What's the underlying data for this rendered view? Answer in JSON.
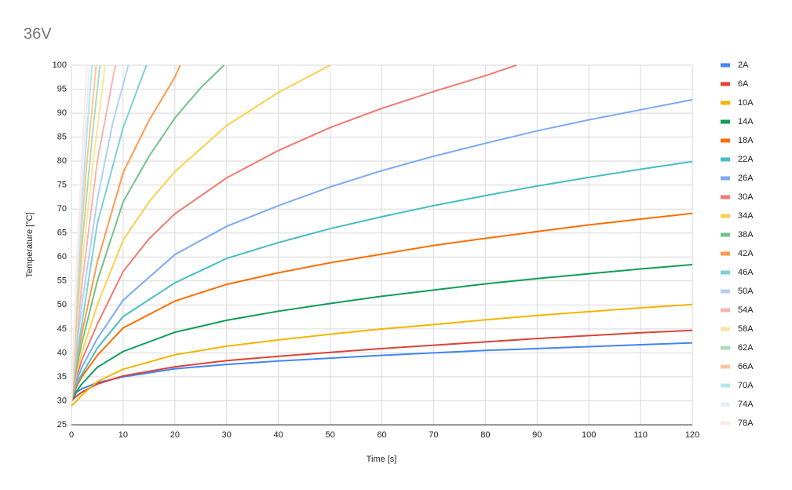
{
  "chart_data": {
    "type": "line",
    "title": "36V",
    "x_label": "Time [s]",
    "y_label": "Temperature [°C]",
    "xlim": [
      0,
      120
    ],
    "xticks": [
      0,
      10,
      20,
      30,
      40,
      50,
      60,
      70,
      80,
      90,
      100,
      110,
      120
    ],
    "ylim": [
      25,
      100
    ],
    "yticks": [
      25,
      30,
      35,
      40,
      45,
      50,
      55,
      60,
      65,
      70,
      75,
      80,
      85,
      90,
      95,
      100
    ],
    "grid": true,
    "legend": "right",
    "series": [
      {
        "name": "2A",
        "color": "#4285f4",
        "x": [
          0,
          1,
          2,
          5,
          10,
          20,
          30,
          40,
          50,
          60,
          70,
          80,
          90,
          100,
          110,
          120
        ],
        "values": [
          30,
          31.8,
          32.5,
          33.8,
          35,
          36.7,
          37.6,
          38.3,
          38.9,
          39.5,
          40,
          40.5,
          40.9,
          41.3,
          41.7,
          42.1
        ]
      },
      {
        "name": "6A",
        "color": "#db4437",
        "x": [
          0,
          1,
          2,
          5,
          10,
          20,
          30,
          40,
          50,
          60,
          70,
          80,
          90,
          100,
          110,
          120
        ],
        "values": [
          30,
          31,
          31.8,
          33.5,
          35.2,
          37.1,
          38.4,
          39.3,
          40.1,
          40.9,
          41.6,
          42.3,
          43,
          43.6,
          44.2,
          44.7
        ]
      },
      {
        "name": "10A",
        "color": "#f4b400",
        "x": [
          0,
          1,
          2,
          5,
          10,
          20,
          30,
          40,
          50,
          60,
          70,
          80,
          90,
          100,
          110,
          120
        ],
        "values": [
          29,
          30,
          31.2,
          34,
          36.6,
          39.6,
          41.4,
          42.7,
          43.9,
          45,
          45.9,
          46.9,
          47.8,
          48.6,
          49.4,
          50.1
        ]
      },
      {
        "name": "14A",
        "color": "#0f9d58",
        "x": [
          0,
          1,
          2,
          5,
          10,
          20,
          30,
          40,
          50,
          60,
          70,
          80,
          90,
          100,
          110,
          120
        ],
        "values": [
          30,
          32,
          33.5,
          37,
          40.3,
          44.3,
          46.8,
          48.7,
          50.3,
          51.8,
          53.1,
          54.4,
          55.5,
          56.5,
          57.5,
          58.4
        ]
      },
      {
        "name": "18A",
        "color": "#ff6d01",
        "x": [
          0,
          1,
          2,
          5,
          10,
          20,
          30,
          40,
          50,
          60,
          70,
          80,
          90,
          100,
          110,
          120
        ],
        "values": [
          30,
          33,
          35,
          39.5,
          45.2,
          50.8,
          54.3,
          56.7,
          58.8,
          60.6,
          62.4,
          63.9,
          65.3,
          66.7,
          67.9,
          69.1
        ]
      },
      {
        "name": "22A",
        "color": "#46bdc6",
        "x": [
          0,
          1,
          2,
          5,
          10,
          20,
          30,
          40,
          50,
          60,
          70,
          80,
          90,
          100,
          110,
          120
        ],
        "values": [
          30,
          33.5,
          35.5,
          41,
          47.6,
          54.6,
          59.7,
          63,
          65.9,
          68.4,
          70.7,
          72.8,
          74.8,
          76.6,
          78.3,
          79.9
        ]
      },
      {
        "name": "26A",
        "color": "#7baaf7",
        "x": [
          0,
          1,
          2,
          5,
          10,
          20,
          30,
          40,
          50,
          60,
          70,
          80,
          90,
          100,
          110,
          120
        ],
        "values": [
          30,
          34,
          37,
          43,
          51,
          60.5,
          66.4,
          70.7,
          74.6,
          78,
          81,
          83.7,
          86.3,
          88.6,
          90.7,
          92.8
        ]
      },
      {
        "name": "30A",
        "color": "#f07b72",
        "x": [
          0,
          1,
          2,
          5,
          10,
          15,
          20,
          30,
          40,
          50,
          60,
          70,
          80,
          86
        ],
        "values": [
          30,
          35,
          38.5,
          46,
          57,
          63.8,
          69,
          76.5,
          82.2,
          87,
          91,
          94.5,
          97.8,
          100
        ]
      },
      {
        "name": "34A",
        "color": "#fcd04f",
        "x": [
          0,
          1,
          2,
          5,
          10,
          15,
          20,
          30,
          40,
          50
        ],
        "values": [
          30,
          36,
          40,
          50,
          63.5,
          71.5,
          77.8,
          87.4,
          94.3,
          100
        ]
      },
      {
        "name": "38A",
        "color": "#71c287",
        "x": [
          0,
          1,
          2,
          5,
          10,
          15,
          20,
          25,
          29.5
        ],
        "values": [
          30,
          37,
          42,
          55,
          71.5,
          81,
          89,
          95.3,
          100
        ]
      },
      {
        "name": "42A",
        "color": "#ff994d",
        "x": [
          0,
          1,
          2,
          5,
          10,
          15,
          20,
          21
        ],
        "values": [
          30,
          38,
          44,
          59,
          77.6,
          88.5,
          97.5,
          100
        ]
      },
      {
        "name": "46A",
        "color": "#7ed1d7",
        "x": [
          0,
          1,
          2,
          5,
          10,
          14.5
        ],
        "values": [
          30,
          39,
          46,
          67,
          87,
          100
        ]
      },
      {
        "name": "50A",
        "color": "#b3cefb",
        "x": [
          0,
          1,
          2,
          5,
          8,
          11
        ],
        "values": [
          30,
          41,
          50,
          72,
          88,
          100
        ]
      },
      {
        "name": "54A",
        "color": "#f7b4ae",
        "x": [
          0,
          1,
          2,
          5,
          8.5
        ],
        "values": [
          30,
          43,
          54,
          80,
          100
        ]
      },
      {
        "name": "58A",
        "color": "#fde49b",
        "x": [
          0,
          1,
          2,
          4,
          6.5
        ],
        "values": [
          30,
          45,
          58,
          78,
          100
        ]
      },
      {
        "name": "62A",
        "color": "#aedcba",
        "x": [
          0,
          1,
          2,
          4,
          5.5
        ],
        "values": [
          30,
          47,
          62,
          85,
          100
        ]
      },
      {
        "name": "66A",
        "color": "#ffc599",
        "x": [
          0,
          1,
          2,
          3,
          4.8
        ],
        "values": [
          30,
          49,
          66,
          80,
          100
        ]
      },
      {
        "name": "70A",
        "color": "#b5e5e9",
        "x": [
          0,
          1,
          2,
          3,
          4
        ],
        "values": [
          30,
          52,
          70,
          86,
          100
        ]
      },
      {
        "name": "74A",
        "color": "#e6eefc",
        "x": [
          0,
          1,
          2,
          3.5
        ],
        "values": [
          30,
          55,
          75,
          100
        ]
      },
      {
        "name": "78A",
        "color": "#fce8e6",
        "x": [
          0,
          1,
          2,
          3
        ],
        "values": [
          30,
          58,
          80,
          100
        ]
      }
    ]
  }
}
